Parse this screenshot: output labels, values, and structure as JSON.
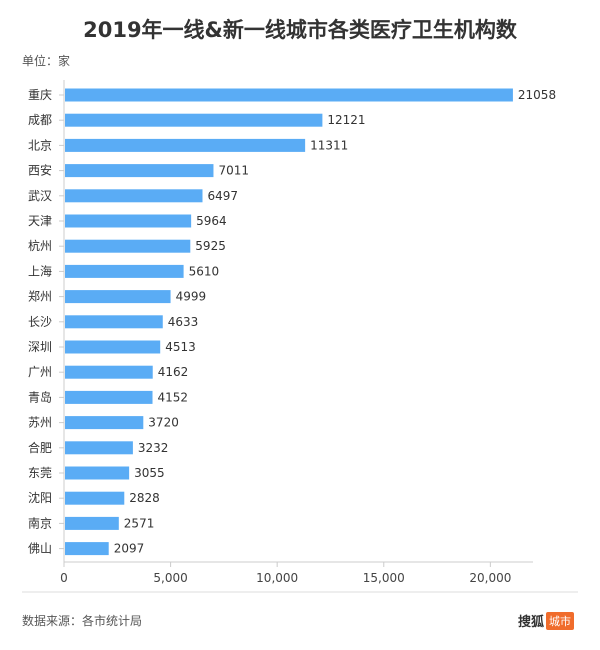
{
  "chart_data": {
    "type": "bar",
    "orientation": "horizontal",
    "title": "2019年一线&新一线城市各类医疗卫生机构数",
    "unit": "单位：家",
    "categories": [
      "重庆",
      "成都",
      "北京",
      "西安",
      "武汉",
      "天津",
      "杭州",
      "上海",
      "郑州",
      "长沙",
      "深圳",
      "广州",
      "青岛",
      "苏州",
      "合肥",
      "东莞",
      "沈阳",
      "南京",
      "佛山"
    ],
    "values": [
      21058,
      12121,
      11311,
      7011,
      6497,
      5964,
      5925,
      5610,
      4999,
      4633,
      4513,
      4162,
      4152,
      3720,
      3232,
      3055,
      2828,
      2571,
      2097
    ],
    "xlim": [
      0,
      22000
    ],
    "xticks": [
      0,
      5000,
      10000,
      15000,
      20000
    ],
    "xtick_labels": [
      "0",
      "5,000",
      "10,000",
      "15,000",
      "20,000"
    ],
    "bar_color": "#5aacf5",
    "grid": false
  },
  "footer": {
    "source": "数据来源：各市统计局",
    "brand_name": "搜狐",
    "brand_tag": "城市"
  },
  "colors": {
    "brand_tag": "#f06c2c"
  }
}
